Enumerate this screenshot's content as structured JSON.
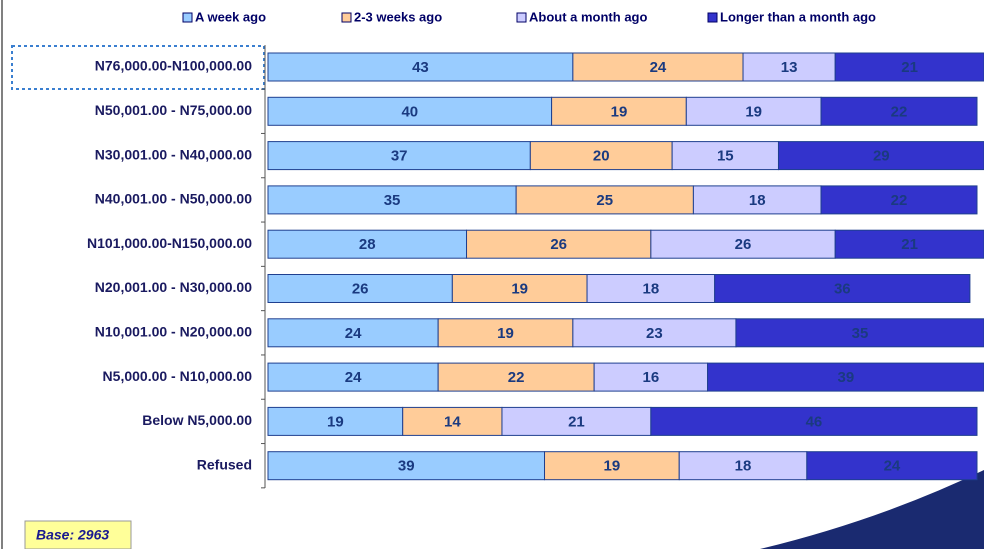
{
  "chart_data": {
    "type": "stacked-bar-horizontal",
    "categories": [
      "N76,000.00-N100,000.00",
      "N50,001.00 - N75,000.00",
      "N30,001.00 - N40,000.00",
      "N40,001.00 - N50,000.00",
      "N101,000.00-N150,000.00",
      "N20,001.00 - N30,000.00",
      "N10,001.00 - N20,000.00",
      "N5,000.00 - N10,000.00",
      "Below N5,000.00",
      "Refused"
    ],
    "series": [
      {
        "name": "A week ago",
        "color": "#99ccff",
        "values": [
          43,
          40,
          37,
          35,
          28,
          26,
          24,
          24,
          19,
          39
        ]
      },
      {
        "name": "2-3 weeks ago",
        "color": "#ffcc99",
        "values": [
          24,
          19,
          20,
          25,
          26,
          19,
          19,
          22,
          14,
          19
        ]
      },
      {
        "name": "About a month ago",
        "color": "#ccccff",
        "values": [
          13,
          19,
          15,
          18,
          26,
          18,
          23,
          16,
          21,
          18
        ]
      },
      {
        "name": "Longer than a month ago",
        "color": "#3333cc",
        "values": [
          21,
          22,
          29,
          22,
          21,
          36,
          35,
          39,
          46,
          24
        ]
      }
    ],
    "xlim": [
      0,
      100
    ],
    "legend": "top",
    "annotation": "Base: 2963"
  }
}
